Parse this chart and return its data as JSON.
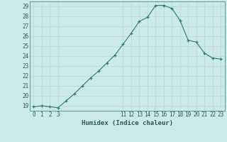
{
  "title": "",
  "x_values": [
    0,
    1,
    2,
    3,
    4,
    5,
    6,
    7,
    8,
    9,
    10,
    11,
    12,
    13,
    14,
    15,
    16,
    17,
    18,
    19,
    20,
    21,
    22,
    23
  ],
  "y_values": [
    18.9,
    19.0,
    18.9,
    18.8,
    19.5,
    20.2,
    21.0,
    21.8,
    22.5,
    23.3,
    24.1,
    25.2,
    26.3,
    27.5,
    27.9,
    29.1,
    29.1,
    28.8,
    27.6,
    25.6,
    25.4,
    24.3,
    23.8,
    23.7
  ],
  "xlabel": "Humidex (Indice chaleur)",
  "ylim_min": 18.5,
  "ylim_max": 29.5,
  "xlim_min": -0.5,
  "xlim_max": 23.5,
  "yticks": [
    19,
    20,
    21,
    22,
    23,
    24,
    25,
    26,
    27,
    28,
    29
  ],
  "xticks": [
    0,
    1,
    2,
    3,
    11,
    12,
    13,
    14,
    15,
    16,
    17,
    18,
    19,
    20,
    21,
    22,
    23
  ],
  "line_color": "#2d7a6e",
  "marker_color": "#2d7a6e",
  "bg_color": "#cceae7",
  "grid_color": "#b8d8d4",
  "axis_bg": "#cceae7"
}
